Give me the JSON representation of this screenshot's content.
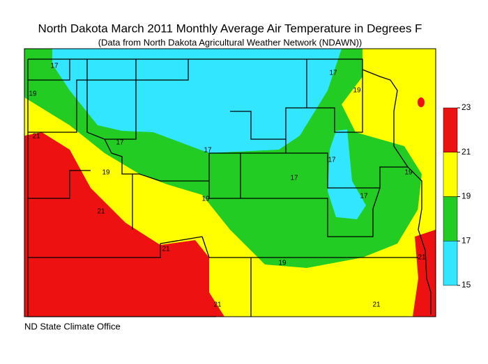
{
  "header": {
    "title": "North Dakota March 2011 Monthly Average Air Temperature in Degrees F",
    "subtitle": "(Data from North Dakota Agricultural Weather Network (NDAWN))"
  },
  "legend": {
    "ticks": [
      15,
      17,
      19,
      21,
      23
    ],
    "colors": [
      "#33e6ff",
      "#22cc22",
      "#ffff00",
      "#ee1111"
    ]
  },
  "contour_labels": [
    17,
    17,
    19,
    19,
    21,
    17,
    17,
    19,
    17,
    17,
    17,
    19,
    19,
    21,
    21,
    19,
    21,
    21,
    21
  ],
  "footer": "ND State Climate Office"
}
